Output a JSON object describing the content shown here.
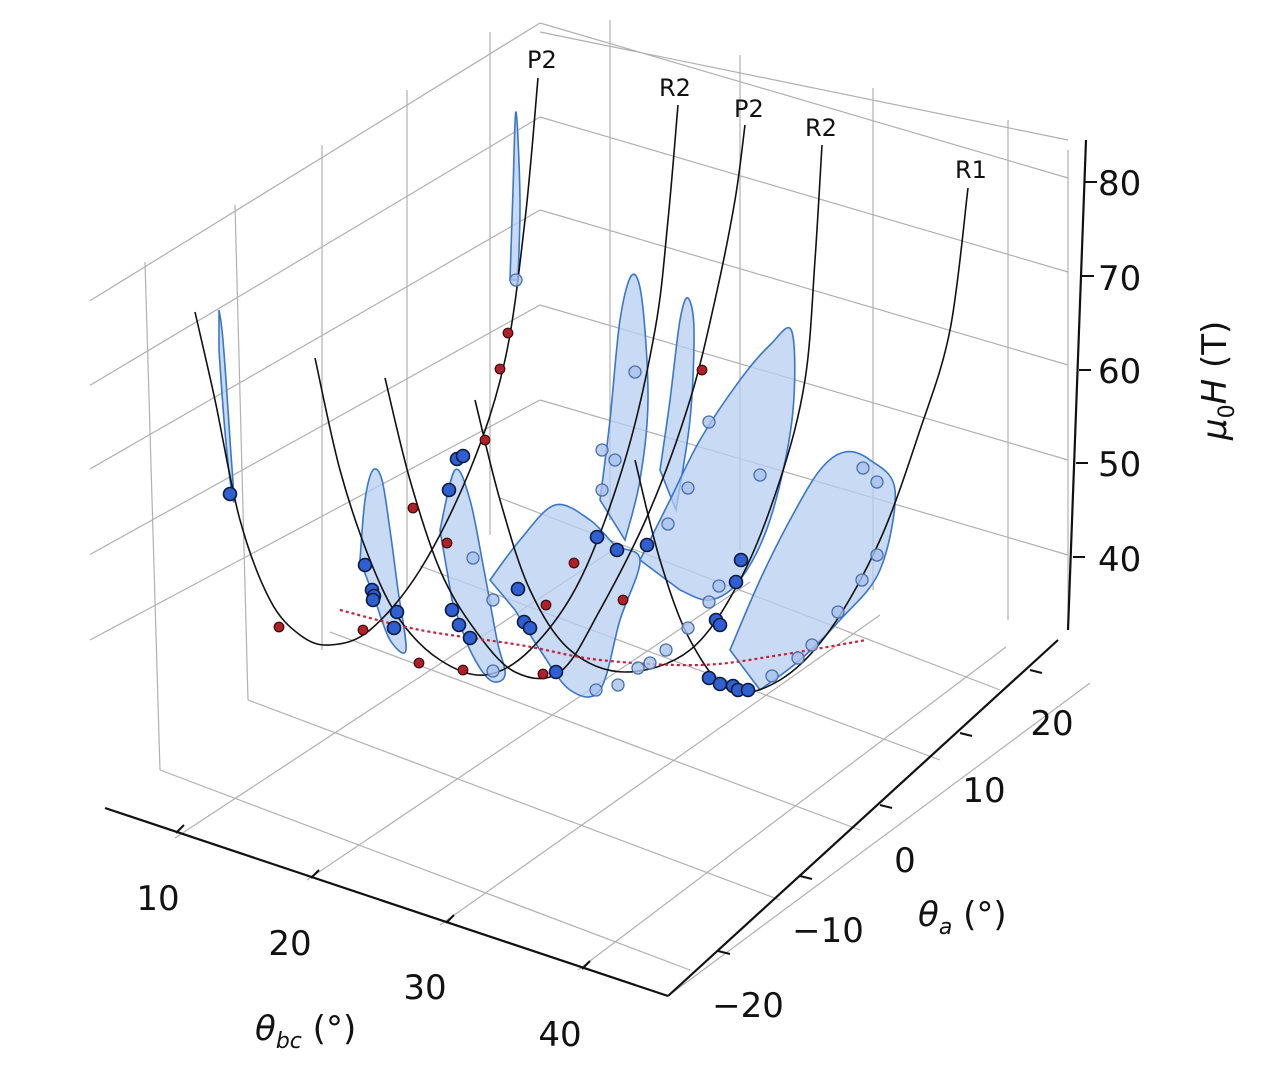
{
  "chart_data": {
    "type": "3d-line-surface",
    "axes": {
      "x": {
        "label_main": "θ",
        "label_sub": "bc",
        "label_unit": " (°)",
        "ticks": [
          "10",
          "20",
          "30",
          "40"
        ],
        "range": [
          5,
          45
        ]
      },
      "y": {
        "label_main": "θ",
        "label_sub": "a",
        "label_unit": " (°)",
        "ticks": [
          "−20",
          "−10",
          "0",
          "10",
          "20"
        ],
        "range": [
          -25,
          25
        ]
      },
      "z": {
        "label_prefix": "μ",
        "label_sub": "0",
        "label_main": "H",
        "label_unit": " (T)",
        "ticks": [
          "40",
          "50",
          "60",
          "70",
          "80"
        ],
        "range": [
          33,
          84
        ]
      }
    },
    "curve_labels": [
      "P2",
      "R2",
      "P2",
      "R2",
      "R1"
    ],
    "grid": true,
    "colors": {
      "surface_fill": "#b7cdf1",
      "surface_edge": "#3a76c9",
      "point_dark": "#2f5fd0",
      "point_light": "#a9c2ec",
      "point_red": "#b0202a",
      "min_line": "#c8203a",
      "curve": "#111111",
      "grid": "#b0b0b0"
    }
  }
}
